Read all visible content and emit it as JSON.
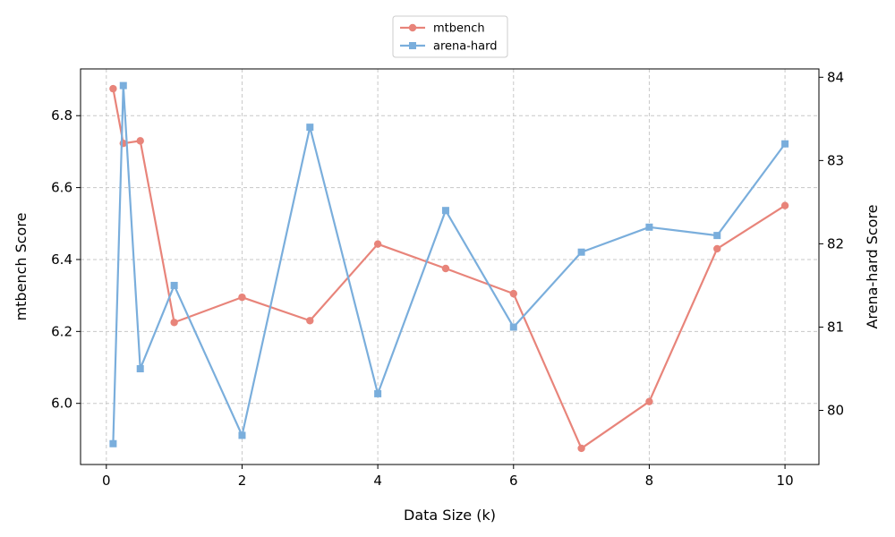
{
  "chart_data": {
    "type": "line",
    "title": "",
    "xlabel": "Data Size (k)",
    "ylabel_left": "mtbench Score",
    "ylabel_right": "Arena-hard Score",
    "x_ticks": [
      0,
      2,
      4,
      6,
      8,
      10
    ],
    "y_left_ticks": [
      6.0,
      6.2,
      6.4,
      6.6,
      6.8
    ],
    "y_right_ticks": [
      80,
      81,
      82,
      83,
      84
    ],
    "xlim": [
      -0.38,
      10.5
    ],
    "ylim_left": [
      5.83,
      6.93
    ],
    "ylim_right": [
      79.35,
      84.1
    ],
    "grid": true,
    "legend_position": "top-center-outside",
    "series": [
      {
        "name": "mtbench",
        "axis": "left",
        "color": "#e8847a",
        "marker": "circle",
        "x": [
          0.1,
          0.25,
          0.5,
          1,
          2,
          3,
          4,
          5,
          6,
          7,
          8,
          9,
          10
        ],
        "y": [
          6.875,
          6.723,
          6.73,
          6.225,
          6.295,
          6.23,
          6.443,
          6.375,
          6.305,
          5.875,
          6.005,
          6.43,
          6.55
        ]
      },
      {
        "name": "arena-hard",
        "axis": "right",
        "color": "#7aaedc",
        "marker": "square",
        "x": [
          0.1,
          0.25,
          0.5,
          1,
          2,
          3,
          4,
          5,
          6,
          7,
          8,
          9,
          10
        ],
        "y": [
          79.6,
          83.9,
          80.5,
          81.5,
          79.7,
          83.4,
          80.2,
          82.4,
          81.0,
          81.9,
          82.2,
          82.1,
          83.2
        ]
      }
    ]
  }
}
